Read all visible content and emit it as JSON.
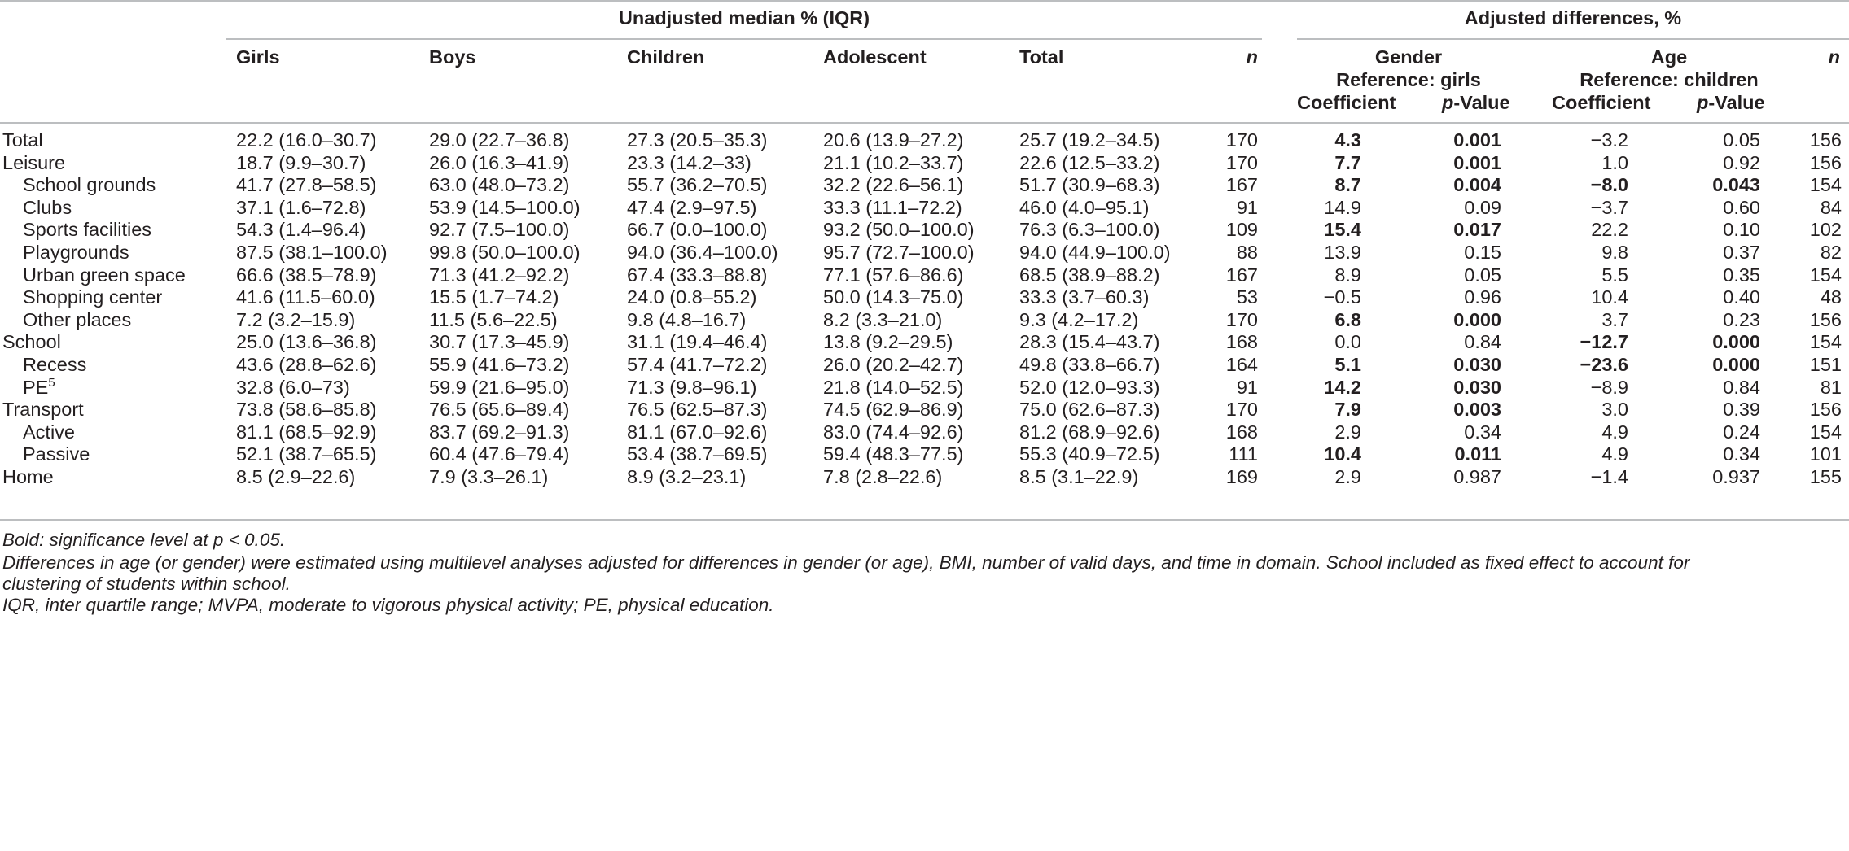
{
  "header": {
    "group_unadjusted": "Unadjusted median % (IQR)",
    "group_adjusted": "Adjusted differences, %",
    "col_girls": "Girls",
    "col_boys": "Boys",
    "col_children": "Children",
    "col_adolescent": "Adolescent",
    "col_total": "Total",
    "col_n": "n",
    "gender": "Gender",
    "gender_ref": "Reference: girls",
    "age": "Age",
    "age_ref": "Reference: children",
    "coefficient": "Coefficient",
    "p_prefix": "p",
    "p_suffix": "-Value",
    "col_n2": "n"
  },
  "rows": [
    {
      "label": "Total",
      "indent": false,
      "girls": "22.2 (16.0–30.7)",
      "boys": "29.0 (22.7–36.8)",
      "children": "27.3 (20.5–35.3)",
      "adolescent": "20.6 (13.9–27.2)",
      "total": "25.7 (19.2–34.5)",
      "n": "170",
      "g_coef": "4.3",
      "g_coef_bold": true,
      "g_p": "0.001",
      "g_p_bold": true,
      "a_coef": "−3.2",
      "a_coef_bold": false,
      "a_p": "0.05",
      "a_p_bold": false,
      "n2": "156"
    },
    {
      "label": "Leisure",
      "indent": false,
      "girls": "18.7 (9.9–30.7)",
      "boys": "26.0 (16.3–41.9)",
      "children": "23.3 (14.2–33)",
      "adolescent": "21.1 (10.2–33.7)",
      "total": "22.6 (12.5–33.2)",
      "n": "170",
      "g_coef": "7.7",
      "g_coef_bold": true,
      "g_p": "0.001",
      "g_p_bold": true,
      "a_coef": "1.0",
      "a_coef_bold": false,
      "a_p": "0.92",
      "a_p_bold": false,
      "n2": "156"
    },
    {
      "label": "School grounds",
      "indent": true,
      "girls": "41.7 (27.8–58.5)",
      "boys": "63.0 (48.0–73.2)",
      "children": "55.7 (36.2–70.5)",
      "adolescent": "32.2 (22.6–56.1)",
      "total": "51.7 (30.9–68.3)",
      "n": "167",
      "g_coef": "8.7",
      "g_coef_bold": true,
      "g_p": "0.004",
      "g_p_bold": true,
      "a_coef": "−8.0",
      "a_coef_bold": true,
      "a_p": "0.043",
      "a_p_bold": true,
      "n2": "154"
    },
    {
      "label": "Clubs",
      "indent": true,
      "girls": "37.1 (1.6–72.8)",
      "boys": "53.9 (14.5–100.0)",
      "children": "47.4 (2.9–97.5)",
      "adolescent": "33.3 (11.1–72.2)",
      "total": "46.0 (4.0–95.1)",
      "n": "91",
      "g_coef": "14.9",
      "g_coef_bold": false,
      "g_p": "0.09",
      "g_p_bold": false,
      "a_coef": "−3.7",
      "a_coef_bold": false,
      "a_p": "0.60",
      "a_p_bold": false,
      "n2": "84"
    },
    {
      "label": "Sports facilities",
      "indent": true,
      "girls": "54.3 (1.4–96.4)",
      "boys": "92.7 (7.5–100.0)",
      "children": "66.7 (0.0–100.0)",
      "adolescent": "93.2 (50.0–100.0)",
      "total": "76.3 (6.3–100.0)",
      "n": "109",
      "g_coef": "15.4",
      "g_coef_bold": true,
      "g_p": "0.017",
      "g_p_bold": true,
      "a_coef": "22.2",
      "a_coef_bold": false,
      "a_p": "0.10",
      "a_p_bold": false,
      "n2": "102"
    },
    {
      "label": "Playgrounds",
      "indent": true,
      "girls": "87.5 (38.1–100.0)",
      "boys": "99.8 (50.0–100.0)",
      "children": "94.0 (36.4–100.0)",
      "adolescent": "95.7 (72.7–100.0)",
      "total": "94.0 (44.9–100.0)",
      "n": "88",
      "g_coef": "13.9",
      "g_coef_bold": false,
      "g_p": "0.15",
      "g_p_bold": false,
      "a_coef": "9.8",
      "a_coef_bold": false,
      "a_p": "0.37",
      "a_p_bold": false,
      "n2": "82"
    },
    {
      "label": "Urban green space",
      "indent": true,
      "girls": "66.6 (38.5–78.9)",
      "boys": "71.3 (41.2–92.2)",
      "children": "67.4 (33.3–88.8)",
      "adolescent": "77.1 (57.6–86.6)",
      "total": "68.5 (38.9–88.2)",
      "n": "167",
      "g_coef": "8.9",
      "g_coef_bold": false,
      "g_p": "0.05",
      "g_p_bold": false,
      "a_coef": "5.5",
      "a_coef_bold": false,
      "a_p": "0.35",
      "a_p_bold": false,
      "n2": "154"
    },
    {
      "label": "Shopping center",
      "indent": true,
      "girls": "41.6 (11.5–60.0)",
      "boys": "15.5 (1.7–74.2)",
      "children": "24.0 (0.8–55.2)",
      "adolescent": "50.0 (14.3–75.0)",
      "total": "33.3 (3.7–60.3)",
      "n": "53",
      "g_coef": "−0.5",
      "g_coef_bold": false,
      "g_p": "0.96",
      "g_p_bold": false,
      "a_coef": "10.4",
      "a_coef_bold": false,
      "a_p": "0.40",
      "a_p_bold": false,
      "n2": "48"
    },
    {
      "label": "Other places",
      "indent": true,
      "girls": "7.2 (3.2–15.9)",
      "boys": "11.5 (5.6–22.5)",
      "children": "9.8 (4.8–16.7)",
      "adolescent": "8.2 (3.3–21.0)",
      "total": "9.3 (4.2–17.2)",
      "n": "170",
      "g_coef": "6.8",
      "g_coef_bold": true,
      "g_p": "0.000",
      "g_p_bold": true,
      "a_coef": "3.7",
      "a_coef_bold": false,
      "a_p": "0.23",
      "a_p_bold": false,
      "n2": "156"
    },
    {
      "label": "School",
      "indent": false,
      "girls": "25.0 (13.6–36.8)",
      "boys": "30.7 (17.3–45.9)",
      "children": "31.1 (19.4–46.4)",
      "adolescent": "13.8 (9.2–29.5)",
      "total": "28.3 (15.4–43.7)",
      "n": "168",
      "g_coef": "0.0",
      "g_coef_bold": false,
      "g_p": "0.84",
      "g_p_bold": false,
      "a_coef": "−12.7",
      "a_coef_bold": true,
      "a_p": "0.000",
      "a_p_bold": true,
      "n2": "154"
    },
    {
      "label": "Recess",
      "indent": true,
      "girls": "43.6 (28.8–62.6)",
      "boys": "55.9 (41.6–73.2)",
      "children": "57.4 (41.7–72.2)",
      "adolescent": "26.0 (20.2–42.7)",
      "total": "49.8 (33.8–66.7)",
      "n": "164",
      "g_coef": "5.1",
      "g_coef_bold": true,
      "g_p": "0.030",
      "g_p_bold": true,
      "a_coef": "−23.6",
      "a_coef_bold": true,
      "a_p": "0.000",
      "a_p_bold": true,
      "n2": "151"
    },
    {
      "label": "PE",
      "label_sup": "5",
      "indent": true,
      "girls": "32.8 (6.0–73)",
      "boys": "59.9 (21.6–95.0)",
      "children": "71.3 (9.8–96.1)",
      "adolescent": "21.8 (14.0–52.5)",
      "total": "52.0 (12.0–93.3)",
      "n": "91",
      "g_coef": "14.2",
      "g_coef_bold": true,
      "g_p": "0.030",
      "g_p_bold": true,
      "a_coef": "−8.9",
      "a_coef_bold": false,
      "a_p": "0.84",
      "a_p_bold": false,
      "n2": "81"
    },
    {
      "label": "Transport",
      "indent": false,
      "girls": "73.8 (58.6–85.8)",
      "boys": "76.5 (65.6–89.4)",
      "children": "76.5 (62.5–87.3)",
      "adolescent": "74.5 (62.9–86.9)",
      "total": "75.0 (62.6–87.3)",
      "n": "170",
      "g_coef": "7.9",
      "g_coef_bold": true,
      "g_p": "0.003",
      "g_p_bold": true,
      "a_coef": "3.0",
      "a_coef_bold": false,
      "a_p": "0.39",
      "a_p_bold": false,
      "n2": "156"
    },
    {
      "label": "Active",
      "indent": true,
      "girls": "81.1 (68.5–92.9)",
      "boys": "83.7 (69.2–91.3)",
      "children": "81.1 (67.0–92.6)",
      "adolescent": "83.0 (74.4–92.6)",
      "total": "81.2 (68.9–92.6)",
      "n": "168",
      "g_coef": "2.9",
      "g_coef_bold": false,
      "g_p": "0.34",
      "g_p_bold": false,
      "a_coef": "4.9",
      "a_coef_bold": false,
      "a_p": "0.24",
      "a_p_bold": false,
      "n2": "154"
    },
    {
      "label": "Passive",
      "indent": true,
      "girls": "52.1 (38.7–65.5)",
      "boys": "60.4 (47.6–79.4)",
      "children": "53.4 (38.7–69.5)",
      "adolescent": "59.4 (48.3–77.5)",
      "total": "55.3 (40.9–72.5)",
      "n": "111",
      "g_coef": "10.4",
      "g_coef_bold": true,
      "g_p": "0.011",
      "g_p_bold": true,
      "a_coef": "4.9",
      "a_coef_bold": false,
      "a_p": "0.34",
      "a_p_bold": false,
      "n2": "101"
    },
    {
      "label": "Home",
      "indent": false,
      "girls": "8.5 (2.9–22.6)",
      "boys": "7.9 (3.3–26.1)",
      "children": "8.9 (3.2–23.1)",
      "adolescent": "7.8 (2.8–22.6)",
      "total": "8.5 (3.1–22.9)",
      "n": "169",
      "g_coef": "2.9",
      "g_coef_bold": false,
      "g_p": "0.987",
      "g_p_bold": false,
      "a_coef": "−1.4",
      "a_coef_bold": false,
      "a_p": "0.937",
      "a_p_bold": false,
      "n2": "155"
    }
  ],
  "notes": {
    "bold_note": "Bold: significance level at p < 0.05.",
    "method_note_line1": "Differences in age (or gender) were estimated using multilevel analyses adjusted for differences in gender (or age), BMI, number of valid days, and time in domain. School included as fixed effect to account for",
    "method_note_line2": "clustering of students within school.",
    "abbrev_note": "IQR, inter quartile range; MVPA, moderate to vigorous physical activity; PE, physical education."
  }
}
